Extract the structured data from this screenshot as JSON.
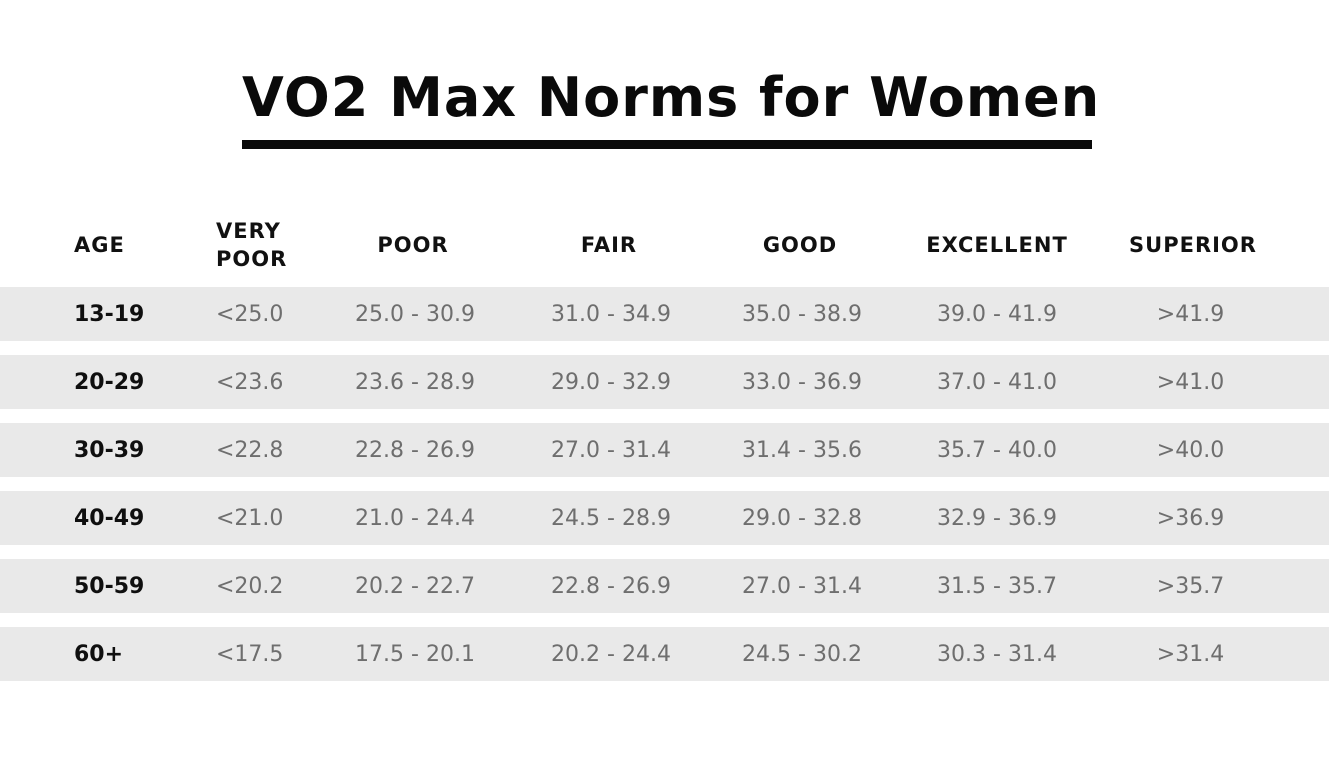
{
  "title": "VO2 Max Norms for Women",
  "table": {
    "headers": {
      "age": "AGE",
      "very_poor_line1": "VERY",
      "very_poor_line2": "POOR",
      "poor": "POOR",
      "fair": "FAIR",
      "good": "GOOD",
      "excellent": "EXCELLENT",
      "superior": "SUPERIOR"
    },
    "rows": [
      {
        "age": "13-19",
        "very_poor": "<25.0",
        "poor": "25.0 - 30.9",
        "fair": "31.0 - 34.9",
        "good": "35.0 - 38.9",
        "excellent": "39.0 - 41.9",
        "superior": ">41.9"
      },
      {
        "age": "20-29",
        "very_poor": "<23.6",
        "poor": "23.6 - 28.9",
        "fair": "29.0 - 32.9",
        "good": "33.0 - 36.9",
        "excellent": "37.0 - 41.0",
        "superior": ">41.0"
      },
      {
        "age": "30-39",
        "very_poor": "<22.8",
        "poor": "22.8 - 26.9",
        "fair": "27.0 - 31.4",
        "good": "31.4 - 35.6",
        "excellent": "35.7 - 40.0",
        "superior": ">40.0"
      },
      {
        "age": "40-49",
        "very_poor": "<21.0",
        "poor": "21.0 - 24.4",
        "fair": "24.5 - 28.9",
        "good": "29.0 - 32.8",
        "excellent": "32.9 - 36.9",
        "superior": ">36.9"
      },
      {
        "age": "50-59",
        "very_poor": "<20.2",
        "poor": "20.2 - 22.7",
        "fair": "22.8 - 26.9",
        "good": "27.0 - 31.4",
        "excellent": "31.5 - 35.7",
        "superior": ">35.7"
      },
      {
        "age": "60+",
        "very_poor": "<17.5",
        "poor": "17.5 - 20.1",
        "fair": "20.2 - 24.4",
        "good": "24.5 - 30.2",
        "excellent": "30.3 - 31.4",
        "superior": ">31.4"
      }
    ]
  },
  "colors": {
    "row_background": "#e9e9e9",
    "value_text": "#6e6e6e",
    "heading_text": "#0a0a0a"
  }
}
